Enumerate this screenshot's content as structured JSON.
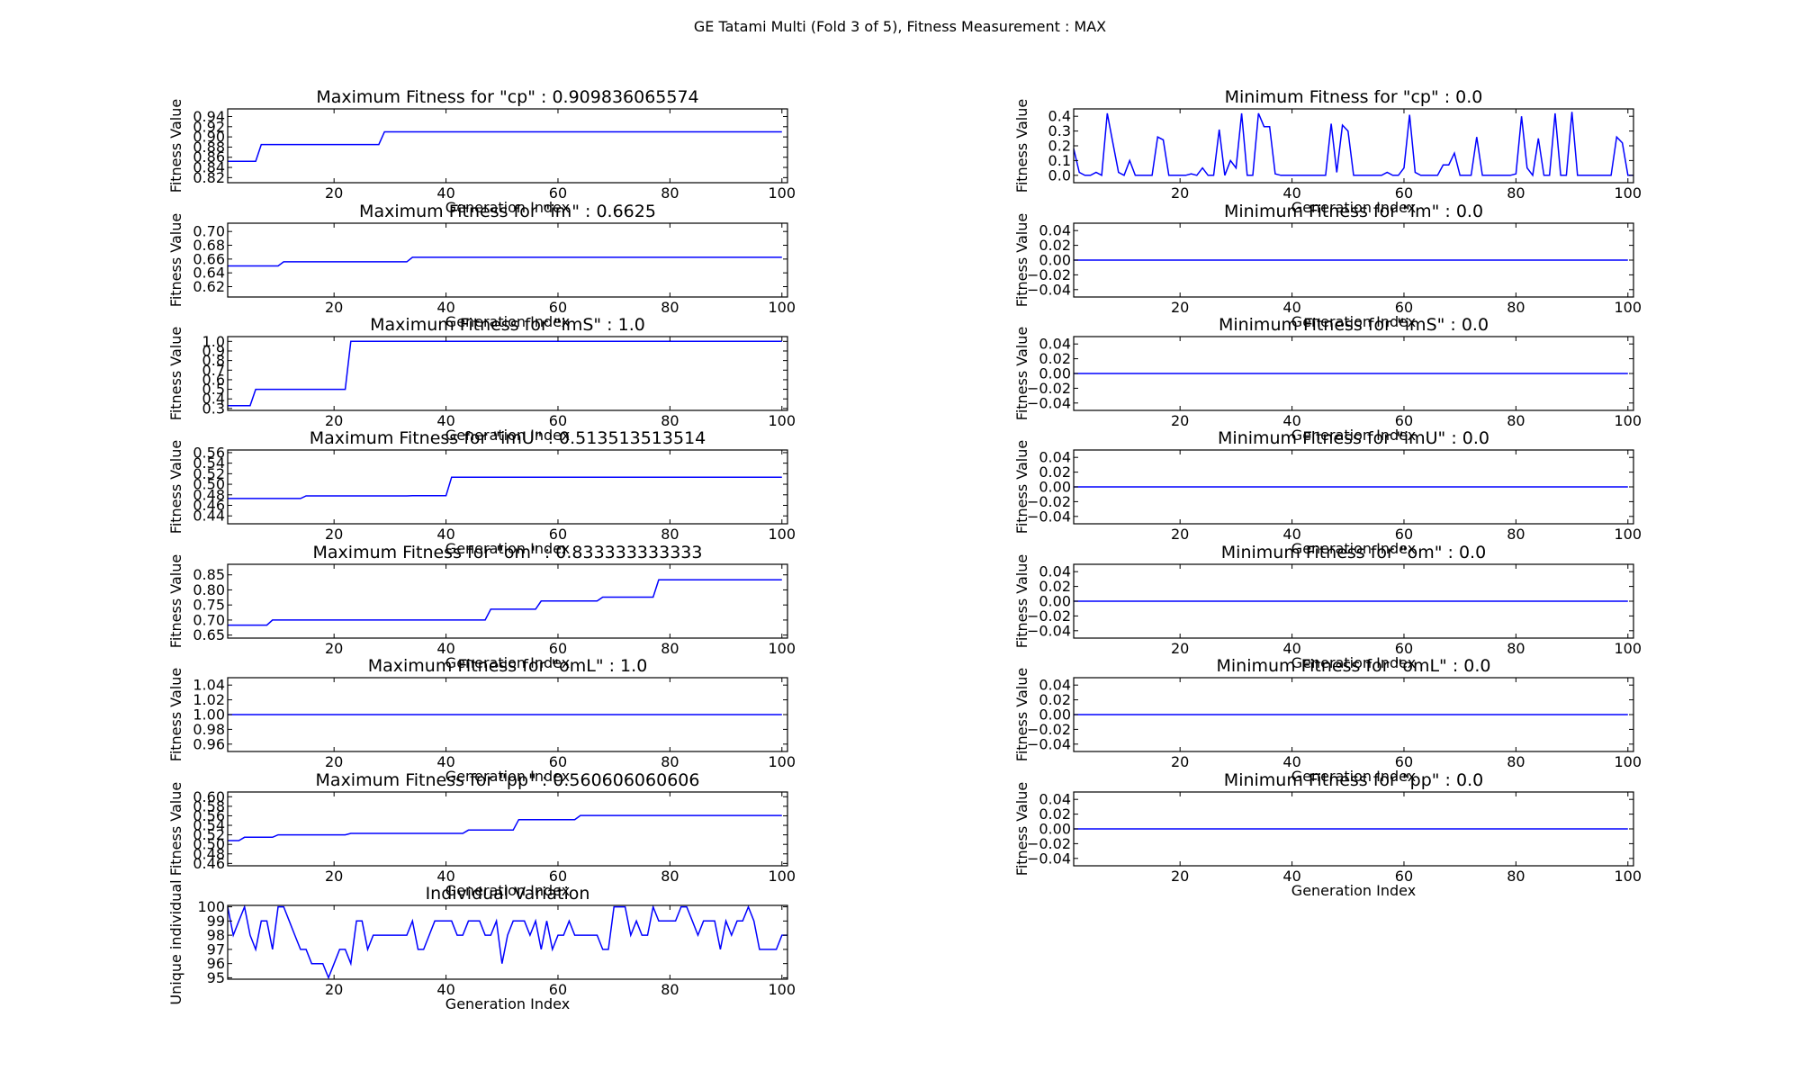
{
  "figure": {
    "suptitle": "GE Tatami Multi (Fold 3 of 5), Fitness Measurement : MAX"
  },
  "chart_data": [
    {
      "id": "max-cp",
      "type": "line",
      "title": "Maximum Fitness for \"cp\" : 0.909836065574",
      "xlabel": "Generation Index",
      "ylabel": "Fitness Value",
      "xlim": [
        1,
        101
      ],
      "ylim": [
        0.81,
        0.955
      ],
      "xticks": [
        20,
        40,
        60,
        80,
        100
      ],
      "yticks": [
        0.82,
        0.84,
        0.86,
        0.88,
        0.9,
        0.92,
        0.94
      ],
      "ytick_labels": [
        "0.82",
        "0.84",
        "0.86",
        "0.88",
        "0.90",
        "0.92",
        "0.94"
      ],
      "series": [
        {
          "color": "#0000ff",
          "steps": [
            [
              1,
              0.852
            ],
            [
              7,
              0.885
            ],
            [
              29,
              0.909836
            ]
          ]
        }
      ]
    },
    {
      "id": "min-cp",
      "type": "line",
      "title": "Minimum Fitness for \"cp\" : 0.0",
      "xlabel": "Generation Index",
      "ylabel": "Fitness Value",
      "xlim": [
        1,
        101
      ],
      "ylim": [
        -0.05,
        0.45
      ],
      "xticks": [
        20,
        40,
        60,
        80,
        100
      ],
      "yticks": [
        0.0,
        0.1,
        0.2,
        0.3,
        0.4
      ],
      "ytick_labels": [
        "0.0",
        "0.1",
        "0.2",
        "0.3",
        "0.4"
      ],
      "series": [
        {
          "color": "#0000ff",
          "values": [
            0.18,
            0.02,
            0.0,
            0.0,
            0.02,
            0.0,
            0.42,
            0.22,
            0.02,
            0.0,
            0.1,
            0.0,
            0.0,
            0.0,
            0.0,
            0.26,
            0.24,
            0.0,
            0.0,
            0.0,
            0.0,
            0.01,
            0.0,
            0.05,
            0.0,
            0.0,
            0.31,
            0.0,
            0.1,
            0.05,
            0.42,
            0.0,
            0.0,
            0.42,
            0.33,
            0.33,
            0.01,
            0.0,
            0.0,
            0.0,
            0.0,
            0.0,
            0.0,
            0.0,
            0.0,
            0.0,
            0.35,
            0.02,
            0.34,
            0.3,
            0.0,
            0.0,
            0.0,
            0.0,
            0.0,
            0.0,
            0.02,
            0.0,
            0.0,
            0.05,
            0.41,
            0.02,
            0.0,
            0.0,
            0.0,
            0.0,
            0.07,
            0.07,
            0.15,
            0.0,
            0.0,
            0.0,
            0.26,
            0.0,
            0.0,
            0.0,
            0.0,
            0.0,
            0.0,
            0.01,
            0.4,
            0.05,
            0.0,
            0.25,
            0.0,
            0.0,
            0.42,
            0.0,
            0.0,
            0.43,
            0.0,
            0.0,
            0.0,
            0.0,
            0.0,
            0.0,
            0.0,
            0.26,
            0.22,
            0.0,
            0.0
          ]
        }
      ]
    },
    {
      "id": "max-im",
      "type": "line",
      "title": "Maximum Fitness for \"im\" : 0.6625",
      "xlabel": "Generation Index",
      "ylabel": "Fitness Value",
      "xlim": [
        1,
        101
      ],
      "ylim": [
        0.605,
        0.712
      ],
      "xticks": [
        20,
        40,
        60,
        80,
        100
      ],
      "yticks": [
        0.62,
        0.64,
        0.66,
        0.68,
        0.7
      ],
      "ytick_labels": [
        "0.62",
        "0.64",
        "0.66",
        "0.68",
        "0.70"
      ],
      "series": [
        {
          "color": "#0000ff",
          "steps": [
            [
              1,
              0.65
            ],
            [
              11,
              0.656
            ],
            [
              34,
              0.6625
            ]
          ]
        }
      ]
    },
    {
      "id": "min-im",
      "type": "line",
      "title": "Minimum Fitness for \"im\" : 0.0",
      "xlabel": "Generation Index",
      "ylabel": "Fitness Value",
      "xlim": [
        1,
        101
      ],
      "ylim": [
        -0.05,
        0.05
      ],
      "xticks": [
        20,
        40,
        60,
        80,
        100
      ],
      "yticks": [
        -0.04,
        -0.02,
        0.0,
        0.02,
        0.04
      ],
      "ytick_labels": [
        "−0.04",
        "−0.02",
        "0.00",
        "0.02",
        "0.04"
      ],
      "series": [
        {
          "color": "#0000ff",
          "steps": [
            [
              1,
              0.0
            ]
          ]
        }
      ]
    },
    {
      "id": "max-ims",
      "type": "line",
      "title": "Maximum Fitness for \"imS\" : 1.0",
      "xlabel": "Generation Index",
      "ylabel": "Fitness Value",
      "xlim": [
        1,
        101
      ],
      "ylim": [
        0.28,
        1.05
      ],
      "xticks": [
        20,
        40,
        60,
        80,
        100
      ],
      "yticks": [
        0.3,
        0.4,
        0.5,
        0.6,
        0.7,
        0.8,
        0.9,
        1.0
      ],
      "ytick_labels": [
        "0.3",
        "0.4",
        "0.5",
        "0.6",
        "0.7",
        "0.8",
        "0.9",
        "1.0"
      ],
      "series": [
        {
          "color": "#0000ff",
          "steps": [
            [
              1,
              0.33
            ],
            [
              6,
              0.5
            ],
            [
              23,
              1.0
            ]
          ]
        }
      ]
    },
    {
      "id": "min-ims",
      "type": "line",
      "title": "Minimum Fitness for \"imS\" : 0.0",
      "xlabel": "Generation Index",
      "ylabel": "Fitness Value",
      "xlim": [
        1,
        101
      ],
      "ylim": [
        -0.05,
        0.05
      ],
      "xticks": [
        20,
        40,
        60,
        80,
        100
      ],
      "yticks": [
        -0.04,
        -0.02,
        0.0,
        0.02,
        0.04
      ],
      "ytick_labels": [
        "−0.04",
        "−0.02",
        "0.00",
        "0.02",
        "0.04"
      ],
      "series": [
        {
          "color": "#0000ff",
          "steps": [
            [
              1,
              0.0
            ]
          ]
        }
      ]
    },
    {
      "id": "max-imu",
      "type": "line",
      "title": "Maximum Fitness for \"imU\" : 0.513513513514",
      "xlabel": "Generation Index",
      "ylabel": "Fitness Value",
      "xlim": [
        1,
        101
      ],
      "ylim": [
        0.425,
        0.565
      ],
      "xticks": [
        20,
        40,
        60,
        80,
        100
      ],
      "yticks": [
        0.44,
        0.46,
        0.48,
        0.5,
        0.52,
        0.54,
        0.56
      ],
      "ytick_labels": [
        "0.44",
        "0.46",
        "0.48",
        "0.50",
        "0.52",
        "0.54",
        "0.56"
      ],
      "series": [
        {
          "color": "#0000ff",
          "steps": [
            [
              1,
              0.473
            ],
            [
              15,
              0.478
            ],
            [
              34,
              0.4785
            ],
            [
              41,
              0.513514
            ]
          ]
        }
      ]
    },
    {
      "id": "min-imu",
      "type": "line",
      "title": "Minimum Fitness for \"imU\" : 0.0",
      "xlabel": "Generation Index",
      "ylabel": "Fitness Value",
      "xlim": [
        1,
        101
      ],
      "ylim": [
        -0.05,
        0.05
      ],
      "xticks": [
        20,
        40,
        60,
        80,
        100
      ],
      "yticks": [
        -0.04,
        -0.02,
        0.0,
        0.02,
        0.04
      ],
      "ytick_labels": [
        "−0.04",
        "−0.02",
        "0.00",
        "0.02",
        "0.04"
      ],
      "series": [
        {
          "color": "#0000ff",
          "steps": [
            [
              1,
              0.0
            ]
          ]
        }
      ]
    },
    {
      "id": "max-om",
      "type": "line",
      "title": "Maximum Fitness for \"om\" : 0.833333333333",
      "xlabel": "Generation Index",
      "ylabel": "Fitness Value",
      "xlim": [
        1,
        101
      ],
      "ylim": [
        0.64,
        0.885
      ],
      "xticks": [
        20,
        40,
        60,
        80,
        100
      ],
      "yticks": [
        0.65,
        0.7,
        0.75,
        0.8,
        0.85
      ],
      "ytick_labels": [
        "0.65",
        "0.70",
        "0.75",
        "0.80",
        "0.85"
      ],
      "series": [
        {
          "color": "#0000ff",
          "steps": [
            [
              1,
              0.683
            ],
            [
              9,
              0.7
            ],
            [
              48,
              0.736
            ],
            [
              57,
              0.763
            ],
            [
              68,
              0.776
            ],
            [
              78,
              0.833333
            ]
          ]
        }
      ]
    },
    {
      "id": "min-om",
      "type": "line",
      "title": "Minimum Fitness for \"om\" : 0.0",
      "xlabel": "Generation Index",
      "ylabel": "Fitness Value",
      "xlim": [
        1,
        101
      ],
      "ylim": [
        -0.05,
        0.05
      ],
      "xticks": [
        20,
        40,
        60,
        80,
        100
      ],
      "yticks": [
        -0.04,
        -0.02,
        0.0,
        0.02,
        0.04
      ],
      "ytick_labels": [
        "−0.04",
        "−0.02",
        "0.00",
        "0.02",
        "0.04"
      ],
      "series": [
        {
          "color": "#0000ff",
          "steps": [
            [
              1,
              0.0
            ]
          ]
        }
      ]
    },
    {
      "id": "max-oml",
      "type": "line",
      "title": "Maximum Fitness for \"omL\" : 1.0",
      "xlabel": "Generation Index",
      "ylabel": "Fitness Value",
      "xlim": [
        1,
        101
      ],
      "ylim": [
        0.95,
        1.05
      ],
      "xticks": [
        20,
        40,
        60,
        80,
        100
      ],
      "yticks": [
        0.96,
        0.98,
        1.0,
        1.02,
        1.04
      ],
      "ytick_labels": [
        "0.96",
        "0.98",
        "1.00",
        "1.02",
        "1.04"
      ],
      "series": [
        {
          "color": "#0000ff",
          "steps": [
            [
              1,
              1.0
            ]
          ]
        }
      ]
    },
    {
      "id": "min-oml",
      "type": "line",
      "title": "Minimum Fitness for \"omL\" : 0.0",
      "xlabel": "Generation Index",
      "ylabel": "Fitness Value",
      "xlim": [
        1,
        101
      ],
      "ylim": [
        -0.05,
        0.05
      ],
      "xticks": [
        20,
        40,
        60,
        80,
        100
      ],
      "yticks": [
        -0.04,
        -0.02,
        0.0,
        0.02,
        0.04
      ],
      "ytick_labels": [
        "−0.04",
        "−0.02",
        "0.00",
        "0.02",
        "0.04"
      ],
      "series": [
        {
          "color": "#0000ff",
          "steps": [
            [
              1,
              0.0
            ]
          ]
        }
      ]
    },
    {
      "id": "max-pp",
      "type": "line",
      "title": "Maximum Fitness for \"pp\" : 0.560606060606",
      "xlabel": "Generation Index",
      "ylabel": "Fitness Value",
      "xlim": [
        1,
        101
      ],
      "ylim": [
        0.455,
        0.61
      ],
      "xticks": [
        20,
        40,
        60,
        80,
        100
      ],
      "yticks": [
        0.46,
        0.48,
        0.5,
        0.52,
        0.54,
        0.56,
        0.58,
        0.6
      ],
      "ytick_labels": [
        "0.46",
        "0.48",
        "0.50",
        "0.52",
        "0.54",
        "0.56",
        "0.58",
        "0.60"
      ],
      "series": [
        {
          "color": "#0000ff",
          "steps": [
            [
              1,
              0.508
            ],
            [
              4,
              0.515
            ],
            [
              10,
              0.52
            ],
            [
              23,
              0.523
            ],
            [
              44,
              0.53
            ],
            [
              53,
              0.552
            ],
            [
              64,
              0.560606
            ]
          ]
        }
      ]
    },
    {
      "id": "min-pp",
      "type": "line",
      "title": "Minimum Fitness for \"pp\" : 0.0",
      "xlabel": "Generation Index",
      "ylabel": "Fitness Value",
      "xlim": [
        1,
        101
      ],
      "ylim": [
        -0.05,
        0.05
      ],
      "xticks": [
        20,
        40,
        60,
        80,
        100
      ],
      "yticks": [
        -0.04,
        -0.02,
        0.0,
        0.02,
        0.04
      ],
      "ytick_labels": [
        "−0.04",
        "−0.02",
        "0.00",
        "0.02",
        "0.04"
      ],
      "series": [
        {
          "color": "#0000ff",
          "steps": [
            [
              1,
              0.0
            ]
          ]
        }
      ]
    },
    {
      "id": "individual-variation",
      "type": "line",
      "title": "Individual Variation",
      "xlabel": "Generation Index",
      "ylabel": "Unique individual",
      "xlim": [
        1,
        101
      ],
      "ylim": [
        94.9,
        100.1
      ],
      "xticks": [
        20,
        40,
        60,
        80,
        100
      ],
      "yticks": [
        95,
        96,
        97,
        98,
        99,
        100
      ],
      "ytick_labels": [
        "95",
        "96",
        "97",
        "98",
        "99",
        "100"
      ],
      "series": [
        {
          "color": "#0000ff",
          "values": [
            100,
            98,
            99,
            100,
            98,
            97,
            99,
            99,
            97,
            100,
            100,
            99,
            98,
            97,
            97,
            96,
            96,
            96,
            95,
            96,
            97,
            97,
            96,
            99,
            99,
            97,
            98,
            98,
            98,
            98,
            98,
            98,
            98,
            99,
            97,
            97,
            98,
            99,
            99,
            99,
            99,
            98,
            98,
            99,
            99,
            99,
            98,
            98,
            99,
            96,
            98,
            99,
            99,
            99,
            98,
            99,
            97,
            99,
            97,
            98,
            98,
            99,
            98,
            98,
            98,
            98,
            98,
            97,
            97,
            100,
            100,
            100,
            98,
            99,
            98,
            98,
            100,
            99,
            99,
            99,
            99,
            100,
            100,
            99,
            98,
            99,
            99,
            99,
            97,
            99,
            98,
            99,
            99,
            100,
            99,
            97,
            97,
            97,
            97,
            98,
            98
          ]
        }
      ]
    }
  ]
}
